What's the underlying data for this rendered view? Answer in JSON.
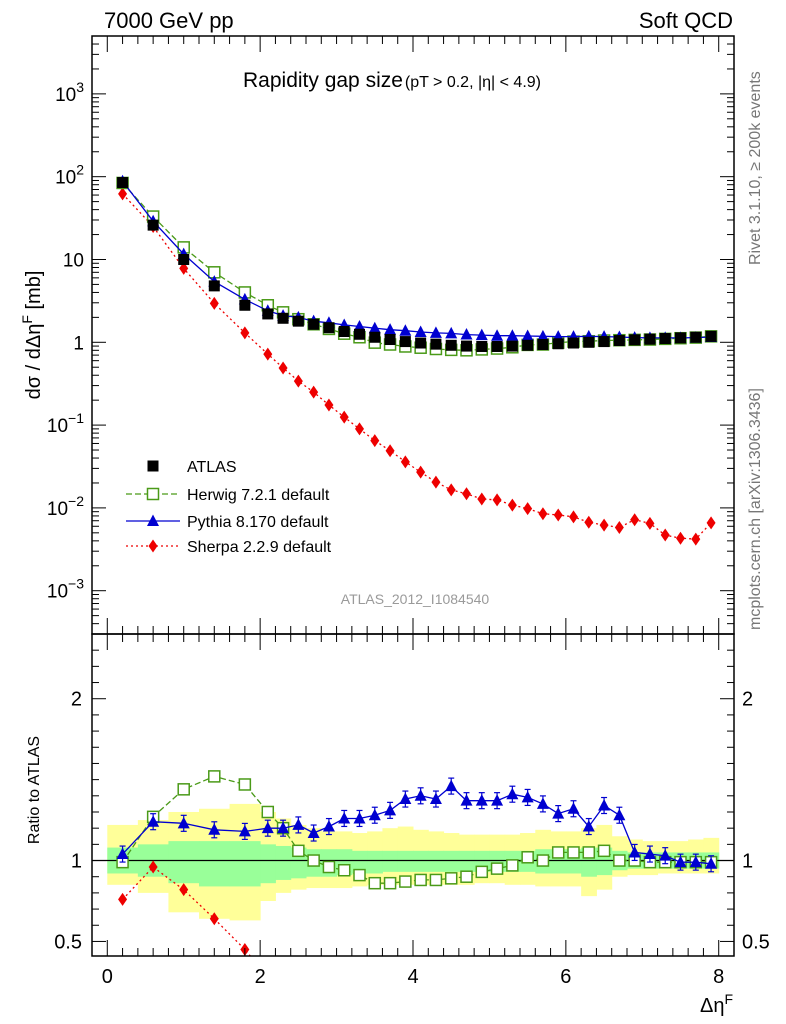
{
  "header": {
    "energy": "7000 GeV pp",
    "process": "Soft QCD"
  },
  "side_labels": {
    "rivet": "Rivet 3.1.10, ≥ 200k events",
    "mcplots": "mcplots.cern.ch [arXiv:1306.3436]"
  },
  "colors": {
    "atlas": "#000000",
    "herwig": "#4a9a18",
    "pythia": "#0000d0",
    "sherpa": "#ee0000",
    "band_inner": "#99ff99",
    "band_outer": "#ffff99"
  },
  "chart_data": [
    {
      "type": "scatter",
      "title": "Rapidity gap size",
      "subtitle": "(pT > 0.2, |η| < 4.9)",
      "analysis": "ATLAS_2012_I1084540",
      "ylabel": "dσ / dΔη^F [mb]",
      "yscale": "log",
      "xlim": [
        -0.2,
        8.2
      ],
      "ylim": [
        0.0003,
        5000
      ],
      "ytick_labels": [
        "10^{-3}",
        "10^{-2}",
        "10^{-1}",
        "1",
        "10",
        "10^{2}",
        "10^{3}"
      ],
      "legend": "center-left",
      "series": [
        {
          "name": "ATLAS",
          "x": [
            0.2,
            0.6,
            1.0,
            1.4,
            1.8,
            2.1,
            2.3,
            2.5,
            2.7,
            2.9,
            3.1,
            3.3,
            3.5,
            3.7,
            3.9,
            4.1,
            4.3,
            4.5,
            4.7,
            4.9,
            5.1,
            5.3,
            5.5,
            5.7,
            5.9,
            6.1,
            6.3,
            6.5,
            6.7,
            6.9,
            7.1,
            7.3,
            7.5,
            7.7,
            7.9
          ],
          "y": [
            85,
            26,
            10,
            4.8,
            2.8,
            2.2,
            1.95,
            1.8,
            1.65,
            1.5,
            1.35,
            1.25,
            1.15,
            1.08,
            1.02,
            0.98,
            0.95,
            0.92,
            0.9,
            0.89,
            0.89,
            0.9,
            0.92,
            0.94,
            0.96,
            0.98,
            1.0,
            1.02,
            1.05,
            1.07,
            1.09,
            1.11,
            1.13,
            1.15,
            1.18
          ]
        },
        {
          "name": "Herwig 7.2.1 default",
          "x": [
            0.2,
            0.6,
            1.0,
            1.4,
            1.8,
            2.1,
            2.3,
            2.5,
            2.7,
            2.9,
            3.1,
            3.3,
            3.5,
            3.7,
            3.9,
            4.1,
            4.3,
            4.5,
            4.7,
            4.9,
            5.1,
            5.3,
            5.5,
            5.7,
            5.9,
            6.1,
            6.3,
            6.5,
            6.7,
            6.9,
            7.1,
            7.3,
            7.5,
            7.7,
            7.9
          ],
          "y": [
            84,
            33,
            14,
            7.0,
            4.0,
            2.8,
            2.3,
            1.9,
            1.65,
            1.45,
            1.27,
            1.15,
            0.99,
            0.94,
            0.89,
            0.86,
            0.83,
            0.81,
            0.8,
            0.82,
            0.84,
            0.87,
            0.93,
            0.94,
            0.99,
            1.02,
            1.03,
            1.05,
            1.06,
            1.07,
            1.08,
            1.1,
            1.12,
            1.14,
            1.18
          ]
        },
        {
          "name": "Pythia 8.170 default",
          "x": [
            0.2,
            0.6,
            1.0,
            1.4,
            1.8,
            2.1,
            2.3,
            2.5,
            2.7,
            2.9,
            3.1,
            3.3,
            3.5,
            3.7,
            3.9,
            4.1,
            4.3,
            4.5,
            4.7,
            4.9,
            5.1,
            5.3,
            5.5,
            5.7,
            5.9,
            6.1,
            6.3,
            6.5,
            6.7,
            6.9,
            7.1,
            7.3,
            7.5,
            7.7,
            7.9
          ],
          "y": [
            88,
            29,
            11.6,
            5.4,
            3.3,
            2.4,
            2.1,
            2.0,
            1.8,
            1.72,
            1.62,
            1.55,
            1.48,
            1.42,
            1.38,
            1.33,
            1.3,
            1.28,
            1.24,
            1.22,
            1.2,
            1.2,
            1.19,
            1.18,
            1.17,
            1.17,
            1.18,
            1.17,
            1.16,
            1.14,
            1.13,
            1.13,
            1.13,
            1.14,
            1.16
          ]
        },
        {
          "name": "Sherpa 2.2.9 default",
          "x": [
            0.2,
            0.6,
            1.0,
            1.4,
            1.8,
            2.1,
            2.3,
            2.5,
            2.7,
            2.9,
            3.1,
            3.3,
            3.5,
            3.7,
            3.9,
            4.1,
            4.3,
            4.5,
            4.7,
            4.9,
            5.1,
            5.3,
            5.5,
            5.7,
            5.9,
            6.1,
            6.3,
            6.5,
            6.7,
            6.9,
            7.1,
            7.3,
            7.5,
            7.7,
            7.9
          ],
          "y": [
            62,
            25,
            7.8,
            2.95,
            1.3,
            0.72,
            0.49,
            0.34,
            0.25,
            0.175,
            0.125,
            0.09,
            0.065,
            0.049,
            0.036,
            0.027,
            0.0205,
            0.0165,
            0.0148,
            0.0128,
            0.0125,
            0.0108,
            0.0098,
            0.0085,
            0.0082,
            0.0078,
            0.0067,
            0.0062,
            0.0058,
            0.0072,
            0.0065,
            0.0047,
            0.0043,
            0.0042,
            0.0066
          ]
        }
      ]
    },
    {
      "type": "scatter",
      "ylabel": "Ratio to ATLAS",
      "xlabel": "Δη^F",
      "xlim": [
        -0.2,
        8.2
      ],
      "ylim": [
        0.41,
        2.4
      ],
      "xtick_labels": [
        "0",
        "2",
        "4",
        "6",
        "8"
      ],
      "ytick_labels": [
        "0.5",
        "1",
        "2"
      ],
      "bands": {
        "edges": [
          0,
          0.4,
          0.8,
          1.2,
          1.6,
          2.0,
          2.2,
          2.4,
          2.6,
          2.8,
          3.0,
          3.2,
          3.4,
          3.6,
          3.8,
          4.0,
          4.2,
          4.4,
          4.6,
          4.8,
          5.0,
          5.2,
          5.4,
          5.6,
          5.8,
          6.0,
          6.2,
          6.4,
          6.6,
          6.8,
          7.0,
          7.2,
          7.4,
          7.6,
          7.8,
          8.0
        ],
        "inner_lo": [
          0.92,
          0.9,
          0.86,
          0.84,
          0.84,
          0.86,
          0.88,
          0.89,
          0.9,
          0.9,
          0.91,
          0.92,
          0.92,
          0.93,
          0.93,
          0.93,
          0.93,
          0.93,
          0.93,
          0.93,
          0.93,
          0.93,
          0.93,
          0.92,
          0.92,
          0.92,
          0.9,
          0.91,
          0.94,
          0.95,
          0.95,
          0.95,
          0.95,
          0.95,
          0.95
        ],
        "inner_hi": [
          1.08,
          1.1,
          1.12,
          1.12,
          1.12,
          1.1,
          1.09,
          1.08,
          1.07,
          1.07,
          1.07,
          1.06,
          1.06,
          1.06,
          1.06,
          1.06,
          1.06,
          1.06,
          1.06,
          1.06,
          1.06,
          1.06,
          1.06,
          1.07,
          1.07,
          1.07,
          1.08,
          1.08,
          1.06,
          1.05,
          1.05,
          1.05,
          1.05,
          1.05,
          1.05
        ],
        "outer_lo": [
          0.85,
          0.8,
          0.68,
          0.64,
          0.63,
          0.75,
          0.8,
          0.82,
          0.83,
          0.83,
          0.83,
          0.84,
          0.85,
          0.85,
          0.85,
          0.85,
          0.85,
          0.85,
          0.85,
          0.86,
          0.86,
          0.85,
          0.85,
          0.84,
          0.84,
          0.84,
          0.78,
          0.82,
          0.9,
          0.91,
          0.91,
          0.92,
          0.92,
          0.92,
          0.92
        ],
        "outer_hi": [
          1.22,
          1.25,
          1.3,
          1.32,
          1.35,
          1.3,
          1.26,
          1.22,
          1.2,
          1.18,
          1.18,
          1.17,
          1.18,
          1.2,
          1.21,
          1.19,
          1.18,
          1.17,
          1.16,
          1.16,
          1.16,
          1.16,
          1.17,
          1.19,
          1.18,
          1.18,
          1.2,
          1.22,
          1.15,
          1.13,
          1.12,
          1.12,
          1.12,
          1.13,
          1.14
        ]
      },
      "series": [
        {
          "name": "Herwig 7.2.1 default",
          "x": [
            0.2,
            0.6,
            1.0,
            1.4,
            1.8,
            2.1,
            2.3,
            2.5,
            2.7,
            2.9,
            3.1,
            3.3,
            3.5,
            3.7,
            3.9,
            4.1,
            4.3,
            4.5,
            4.7,
            4.9,
            5.1,
            5.3,
            5.5,
            5.7,
            5.9,
            6.1,
            6.3,
            6.5,
            6.7,
            6.9,
            7.1,
            7.3,
            7.5,
            7.7,
            7.9
          ],
          "y": [
            0.99,
            1.27,
            1.44,
            1.52,
            1.47,
            1.3,
            1.2,
            1.06,
            1.0,
            0.96,
            0.94,
            0.91,
            0.86,
            0.86,
            0.87,
            0.88,
            0.88,
            0.89,
            0.9,
            0.93,
            0.95,
            0.97,
            1.02,
            1.0,
            1.05,
            1.05,
            1.05,
            1.06,
            1.0,
            1.0,
            0.99,
            0.99,
            0.99,
            0.99,
            0.99
          ]
        },
        {
          "name": "Pythia 8.170 default",
          "x": [
            0.2,
            0.6,
            1.0,
            1.4,
            1.8,
            2.1,
            2.3,
            2.5,
            2.7,
            2.9,
            3.1,
            3.3,
            3.5,
            3.7,
            3.9,
            4.1,
            4.3,
            4.5,
            4.7,
            4.9,
            5.1,
            5.3,
            5.5,
            5.7,
            5.9,
            6.1,
            6.3,
            6.5,
            6.7,
            6.9,
            7.1,
            7.3,
            7.5,
            7.7,
            7.9
          ],
          "y": [
            1.04,
            1.24,
            1.23,
            1.19,
            1.18,
            1.2,
            1.2,
            1.22,
            1.17,
            1.21,
            1.26,
            1.26,
            1.28,
            1.31,
            1.38,
            1.4,
            1.38,
            1.46,
            1.37,
            1.37,
            1.37,
            1.41,
            1.39,
            1.35,
            1.29,
            1.32,
            1.21,
            1.34,
            1.28,
            1.05,
            1.04,
            1.03,
            0.99,
            0.99,
            0.98
          ]
        },
        {
          "name": "Sherpa 2.2.9 default",
          "x": [
            0.2,
            0.6,
            1.0,
            1.4,
            1.8
          ],
          "y": [
            0.76,
            0.96,
            0.82,
            0.64,
            0.45
          ]
        }
      ]
    }
  ]
}
